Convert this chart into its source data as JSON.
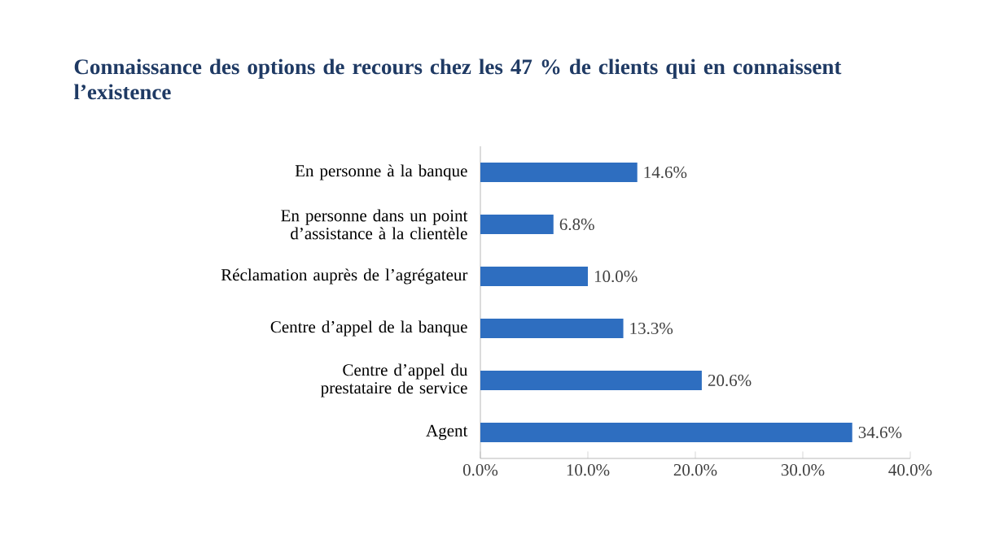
{
  "chart_data": {
    "type": "bar",
    "orientation": "horizontal",
    "title": "Connaissance des options de recours chez les 47 % de clients qui en connaissent l’existence",
    "categories": [
      "En personne à la banque",
      "En personne dans un point d’assistance à la clientèle",
      "Réclamation auprès de l’agrégateur",
      "Centre d’appel de la banque",
      "Centre d’appel du prestataire de service",
      "Agent"
    ],
    "values": [
      14.6,
      6.8,
      10.0,
      13.3,
      20.6,
      34.6
    ],
    "value_labels": [
      "14.6%",
      "6.8%",
      "10.0%",
      "13.3%",
      "20.6%",
      "34.6%"
    ],
    "color": "#2e6ec0",
    "xlim": [
      0,
      40
    ],
    "xticks": [
      {
        "value": 0,
        "label": "0.0%"
      },
      {
        "value": 10,
        "label": "10.0%"
      },
      {
        "value": 20,
        "label": "20.0%"
      },
      {
        "value": 30,
        "label": "30.0%"
      },
      {
        "value": 40,
        "label": "40.0%"
      }
    ],
    "grid": false
  }
}
